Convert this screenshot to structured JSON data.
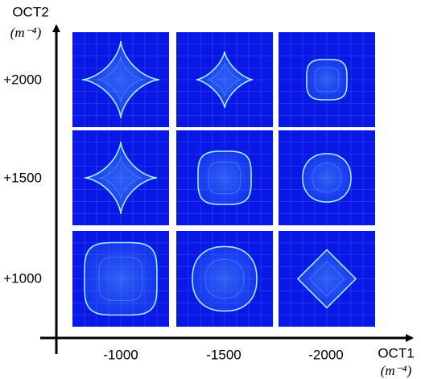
{
  "y_axis": {
    "label": "OCT2",
    "unit": "(m⁻⁴)",
    "ticks": [
      "+2000",
      "+1500",
      "+1000"
    ]
  },
  "x_axis": {
    "label": "OCT1",
    "unit": "(m⁻⁴)",
    "ticks": [
      "-1000",
      "-1500",
      "-2000"
    ]
  }
}
